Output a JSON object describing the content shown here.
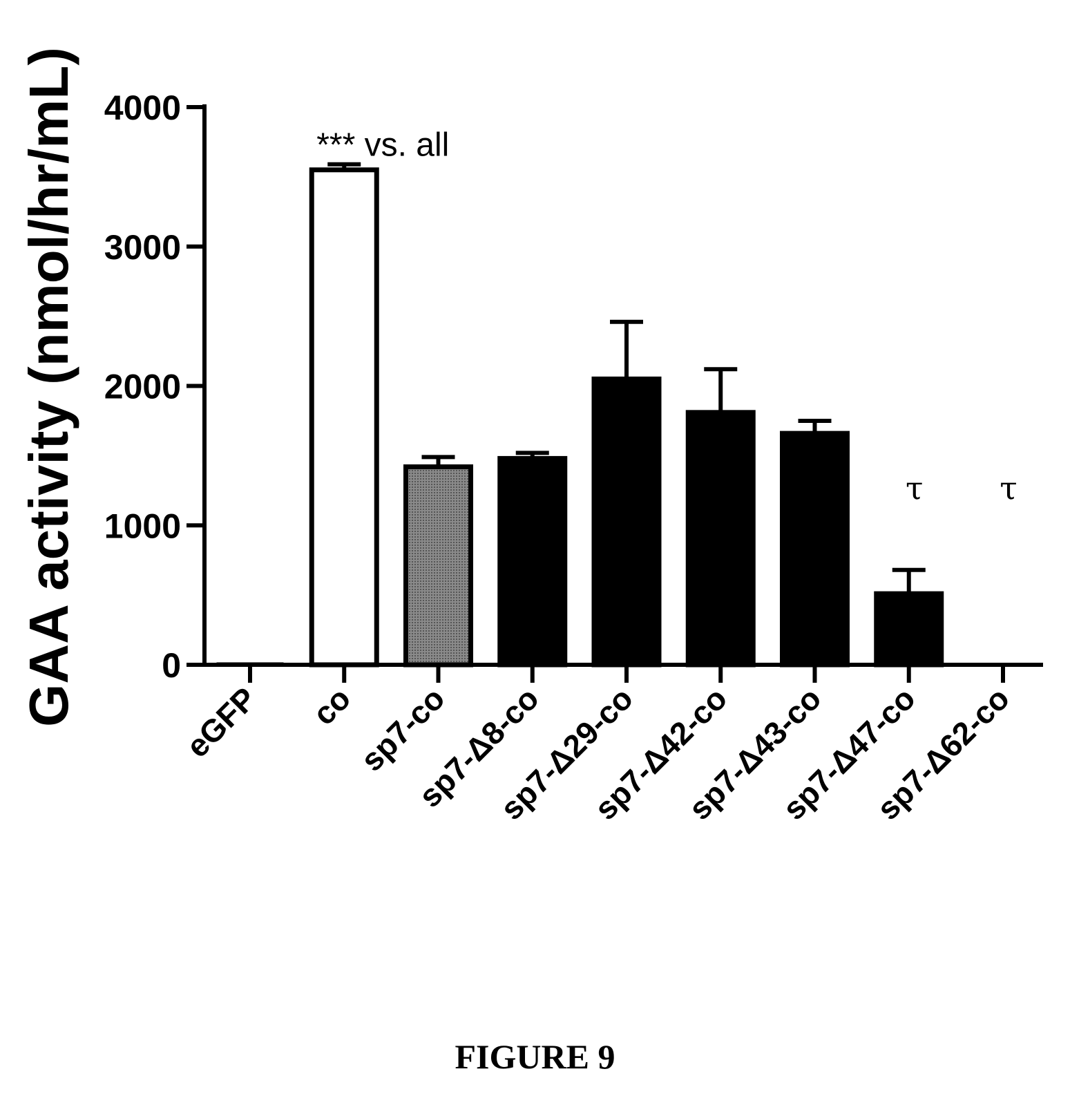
{
  "figure": {
    "caption": "FIGURE 9"
  },
  "chart_data": {
    "type": "bar",
    "title": "",
    "xlabel": "",
    "ylabel": "GAA activity (nmol/hr/mL)",
    "ylim": [
      0,
      4000
    ],
    "yticks": [
      0,
      1000,
      2000,
      3000,
      4000
    ],
    "categories": [
      "eGFP",
      "co",
      "sp7-co",
      "sp7-Δ8-co",
      "sp7-Δ29-co",
      "sp7-Δ42-co",
      "sp7-Δ43-co",
      "sp7-Δ47-co",
      "sp7-Δ62-co"
    ],
    "values": [
      10,
      3550,
      1420,
      1480,
      2050,
      1810,
      1660,
      510,
      0
    ],
    "errors": [
      0,
      40,
      70,
      40,
      410,
      310,
      90,
      170,
      0
    ],
    "bar_colors": [
      "#ffffff",
      "#ffffff",
      "#777777",
      "#000000",
      "#000000",
      "#000000",
      "#000000",
      "#000000",
      "#000000"
    ],
    "annotations": [
      {
        "text": "*** vs. all",
        "category": "co"
      },
      {
        "text": "τ",
        "category": "sp7-Δ47-co"
      },
      {
        "text": "τ",
        "category": "sp7-Δ62-co"
      }
    ],
    "grid": false,
    "legend": "none"
  }
}
